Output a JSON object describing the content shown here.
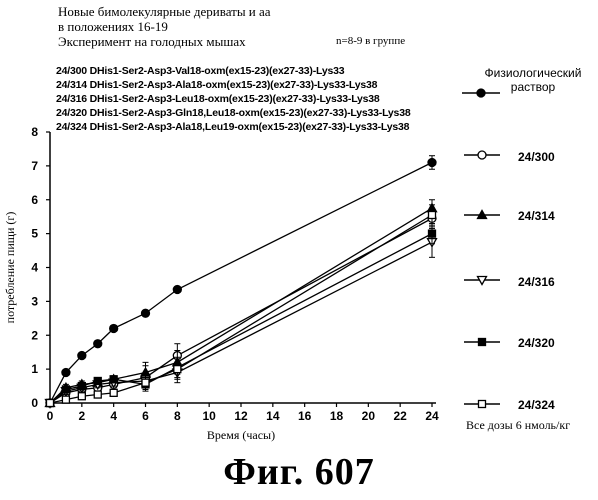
{
  "header": {
    "line1": "Новые бимолекулярные дериваты и аа",
    "line2": "в положениях 16-19",
    "line3": "Эксперимент на голодных мышах",
    "group_note": "n=8-9 в группе"
  },
  "peptides": [
    "24/300 DHis1-Ser2-Asp3-Val18-oxm(ex15-23)(ex27-33)-Lys33",
    "24/314 DHis1-Ser2-Asp3-Ala18-oxm(ex15-23)(ex27-33)-Lys33-Lys38",
    "24/316 DHis1-Ser2-Asp3-Leu18-oxm(ex15-23)(ex27-33)-Lys33-Lys38",
    "24/320 DHis1-Ser2-Asp3-Gln18,Leu18-oxm(ex15-23)(ex27-33)-Lys33-Lys38",
    "24/324 DHis1-Ser2-Asp3-Ala18,Leu19-oxm(ex15-23)(ex27-33)-Lys33-Lys38"
  ],
  "dose_note": "Все дозы 6 нмоль/кг",
  "figure_caption": "Фиг. 607",
  "chart_data": {
    "type": "line",
    "xlabel": "Время (часы)",
    "ylabel": "потребление пищи (г)",
    "xlim": [
      0,
      24
    ],
    "ylim": [
      0,
      8
    ],
    "x_ticks": [
      "0",
      "2",
      "4",
      "6",
      "8",
      "10",
      "12",
      "14",
      "16",
      "18",
      "20",
      "22",
      "24"
    ],
    "y_ticks": [
      "0",
      "1",
      "2",
      "3",
      "4",
      "5",
      "6",
      "7",
      "8"
    ],
    "grid": false,
    "series": [
      {
        "name": "Физиологический раствор",
        "name_lines": [
          "Физиологический",
          "раствор"
        ],
        "marker": "circle-filled",
        "x": [
          0,
          1,
          2,
          3,
          4,
          6,
          8,
          24
        ],
        "y": [
          0,
          0.9,
          1.4,
          1.75,
          2.2,
          2.65,
          3.35,
          7.1
        ],
        "err": [
          0,
          0.05,
          0.05,
          0.05,
          0.05,
          0.05,
          0.05,
          0.2
        ]
      },
      {
        "name": "24/300",
        "marker": "circle-open",
        "x": [
          0,
          1,
          2,
          3,
          4,
          6,
          8,
          24
        ],
        "y": [
          0,
          0.3,
          0.4,
          0.45,
          0.55,
          0.75,
          1.4,
          5.45
        ],
        "err": [
          0,
          0.1,
          0.1,
          0.1,
          0.1,
          0.35,
          0.35,
          0.3
        ]
      },
      {
        "name": "24/314",
        "marker": "triangle-filled",
        "x": [
          0,
          1,
          2,
          3,
          4,
          6,
          8,
          24
        ],
        "y": [
          0,
          0.45,
          0.55,
          0.6,
          0.7,
          0.9,
          1.2,
          5.75
        ],
        "err": [
          0,
          0.1,
          0.1,
          0.1,
          0.1,
          0.3,
          0.35,
          0.25
        ]
      },
      {
        "name": "24/316",
        "marker": "triangle-open",
        "x": [
          0,
          1,
          2,
          3,
          4,
          6,
          8,
          24
        ],
        "y": [
          0,
          0.35,
          0.45,
          0.55,
          0.6,
          0.65,
          0.9,
          4.75
        ],
        "err": [
          0,
          0.1,
          0.1,
          0.1,
          0.1,
          0.2,
          0.3,
          0.45
        ]
      },
      {
        "name": "24/320",
        "marker": "square-filled",
        "x": [
          0,
          1,
          2,
          3,
          4,
          6,
          8,
          24
        ],
        "y": [
          0,
          0.4,
          0.5,
          0.65,
          0.7,
          0.55,
          1.05,
          5.0
        ],
        "err": [
          0,
          0.1,
          0.1,
          0.1,
          0.1,
          0.2,
          0.3,
          0.3
        ]
      },
      {
        "name": "24/324",
        "marker": "square-open",
        "x": [
          0,
          1,
          2,
          3,
          4,
          6,
          8,
          24
        ],
        "y": [
          0,
          0.1,
          0.2,
          0.25,
          0.3,
          0.6,
          1.0,
          5.55
        ],
        "err": [
          0,
          0.05,
          0.1,
          0.1,
          0.1,
          0.2,
          0.3,
          0.3
        ]
      }
    ]
  }
}
